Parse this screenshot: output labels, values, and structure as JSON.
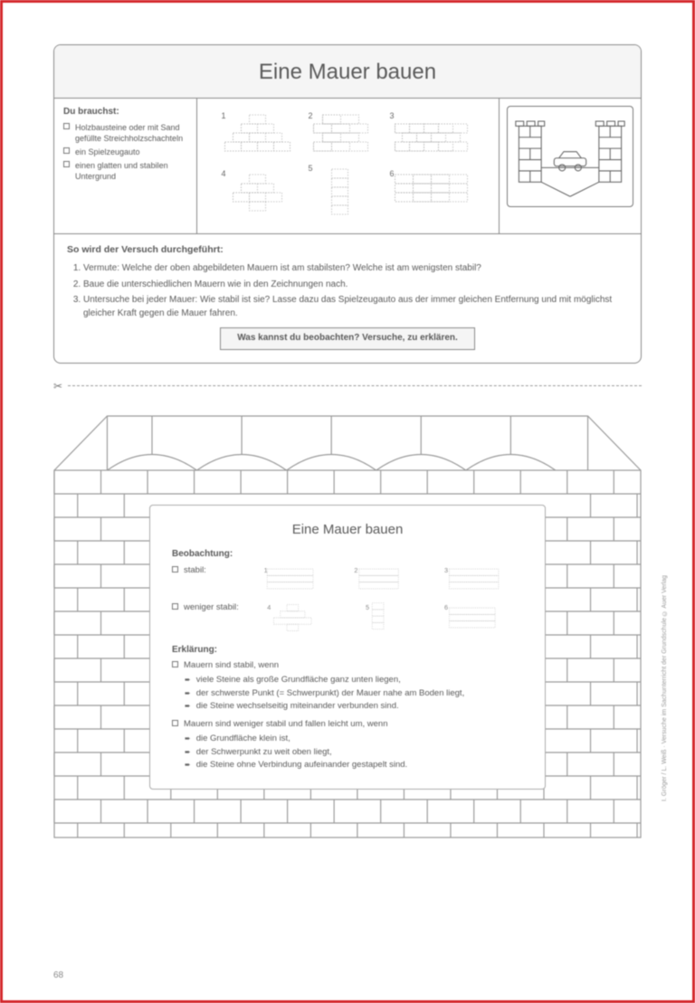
{
  "page_number": "68",
  "side_credit": "I. Gröger / L. Weiß · Versuche im Sachunterricht der Grundschule\n© Auer Verlag",
  "colors": {
    "frame_border": "#d4262a",
    "card_border": "#888888",
    "text": "#5a5a5a",
    "brick_line": "#9a9a9a",
    "dotted": "#bbbbbb",
    "callout_bg": "#f5f5f5"
  },
  "card1": {
    "title": "Eine Mauer bauen",
    "need_heading": "Du brauchst:",
    "needs": [
      "Holzbausteine oder mit Sand gefüllte Streichholz­schachteln",
      "ein Spielzeugauto",
      "einen glatten und stabilen Untergrund"
    ],
    "diagram_labels": [
      "1",
      "2",
      "3",
      "4",
      "5",
      "6"
    ],
    "procedure_heading": "So wird der Versuch durchgeführt:",
    "steps": [
      "Vermute: Welche der oben abgebildeten Mauern ist am stabilsten? Welche ist am wenigsten stabil?",
      "Baue die unterschiedlichen Mauern wie in den Zeichnungen nach.",
      "Untersuche bei jeder Mauer: Wie stabil ist sie? Lasse dazu das Spielzeugauto aus der immer gleichen Entfernung und mit möglichst gleicher Kraft gegen die Mauer fahren."
    ],
    "callout": "Was kannst du beobachten? Versuche, zu erklären."
  },
  "card2": {
    "title": "Eine Mauer bauen",
    "obs_heading": "Beobachtung:",
    "obs": [
      {
        "label": "stabil:",
        "nums": [
          "1",
          "2",
          "3"
        ]
      },
      {
        "label": "weniger stabil:",
        "nums": [
          "4",
          "5",
          "6"
        ]
      }
    ],
    "exp_heading": "Erklärung:",
    "exp_groups": [
      {
        "lead": "Mauern sind stabil, wenn",
        "items": [
          "viele Steine als große Grundfläche ganz unten liegen,",
          "der schwerste Punkt (= Schwerpunkt) der Mauer nahe am Boden liegt,",
          "die Steine wechselseitig miteinander verbunden sind."
        ]
      },
      {
        "lead": "Mauern sind weniger stabil und fallen leicht um, wenn",
        "items": [
          "die Grundfläche klein ist,",
          "der Schwerpunkt zu weit oben liegt,",
          "die Steine ohne Verbindung aufeinander gestapelt sind."
        ]
      }
    ]
  }
}
